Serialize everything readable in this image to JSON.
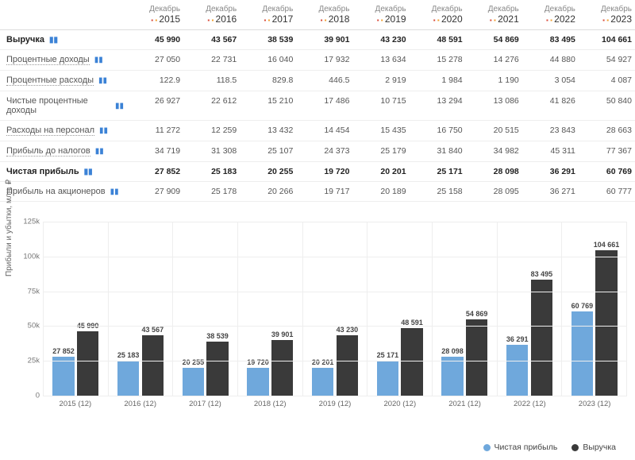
{
  "colors": {
    "series_profit": "#6fa8dc",
    "series_revenue": "#3a3a3a",
    "grid": "#eeeeee",
    "axis": "#cccccc",
    "text": "#555555",
    "background": "#ffffff",
    "icon_red": "#d94b3a",
    "icon_orange": "#f0a030",
    "chart_icon": "#3b82d6"
  },
  "table": {
    "header_month": "Декабрь",
    "years": [
      "2015",
      "2016",
      "2017",
      "2018",
      "2019",
      "2020",
      "2021",
      "2022",
      "2023"
    ],
    "rows": [
      {
        "label": "Выручка",
        "bold": true,
        "underline": false,
        "values": [
          "45 990",
          "43 567",
          "38 539",
          "39 901",
          "43 230",
          "48 591",
          "54 869",
          "83 495",
          "104 661"
        ]
      },
      {
        "label": "Процентные доходы",
        "bold": false,
        "underline": true,
        "values": [
          "27 050",
          "22 731",
          "16 040",
          "17 932",
          "13 634",
          "15 278",
          "14 276",
          "44 880",
          "54 927"
        ]
      },
      {
        "label": "Процентные расходы",
        "bold": false,
        "underline": true,
        "values": [
          "122.9",
          "118.5",
          "829.8",
          "446.5",
          "2 919",
          "1 984",
          "1 190",
          "3 054",
          "4 087"
        ]
      },
      {
        "label": "Чистые процентные доходы",
        "bold": false,
        "underline": false,
        "values": [
          "26 927",
          "22 612",
          "15 210",
          "17 486",
          "10 715",
          "13 294",
          "13 086",
          "41 826",
          "50 840"
        ]
      },
      {
        "label": "Расходы на персонал",
        "bold": false,
        "underline": true,
        "values": [
          "11 272",
          "12 259",
          "13 432",
          "14 454",
          "15 435",
          "16 750",
          "20 515",
          "23 843",
          "28 663"
        ]
      },
      {
        "label": "Прибыль до налогов",
        "bold": false,
        "underline": true,
        "values": [
          "34 719",
          "31 308",
          "25 107",
          "24 373",
          "25 179",
          "31 840",
          "34 982",
          "45 311",
          "77 367"
        ]
      },
      {
        "label": "Чистая прибыль",
        "bold": true,
        "underline": false,
        "values": [
          "27 852",
          "25 183",
          "20 255",
          "19 720",
          "20 201",
          "25 171",
          "28 098",
          "36 291",
          "60 769"
        ]
      },
      {
        "label": "Прибыль на акционеров",
        "bold": false,
        "underline": false,
        "values": [
          "27 909",
          "25 178",
          "20 266",
          "19 717",
          "20 189",
          "25 158",
          "28 095",
          "36 271",
          "60 777"
        ]
      }
    ]
  },
  "chart": {
    "type": "bar",
    "ylabel": "Прибыли и убытки, млн. ₽",
    "ylim_max": 125000,
    "yticks": [
      {
        "v": 0,
        "label": "0"
      },
      {
        "v": 25000,
        "label": "25k"
      },
      {
        "v": 50000,
        "label": "50k"
      },
      {
        "v": 75000,
        "label": "75k"
      },
      {
        "v": 100000,
        "label": "100k"
      },
      {
        "v": 125000,
        "label": "125k"
      }
    ],
    "categories": [
      "2015 (12)",
      "2016 (12)",
      "2017 (12)",
      "2018 (12)",
      "2019 (12)",
      "2020 (12)",
      "2021 (12)",
      "2022 (12)",
      "2023 (12)"
    ],
    "series": [
      {
        "name": "Чистая прибыль",
        "color": "#6fa8dc",
        "values": [
          27852,
          25183,
          20255,
          19720,
          20201,
          25171,
          28098,
          36291,
          60769
        ],
        "labels": [
          "27 852",
          "25 183",
          "20 255",
          "19 720",
          "20 201",
          "25 171",
          "28 098",
          "36 291",
          "60 769"
        ]
      },
      {
        "name": "Выручка",
        "color": "#3a3a3a",
        "values": [
          45990,
          43567,
          38539,
          39901,
          43230,
          48591,
          54869,
          83495,
          104661
        ],
        "labels": [
          "45 990",
          "43 567",
          "38 539",
          "39 901",
          "43 230",
          "48 591",
          "54 869",
          "83 495",
          "104 661"
        ]
      }
    ],
    "legend": [
      "Чистая прибыль",
      "Выручка"
    ]
  }
}
